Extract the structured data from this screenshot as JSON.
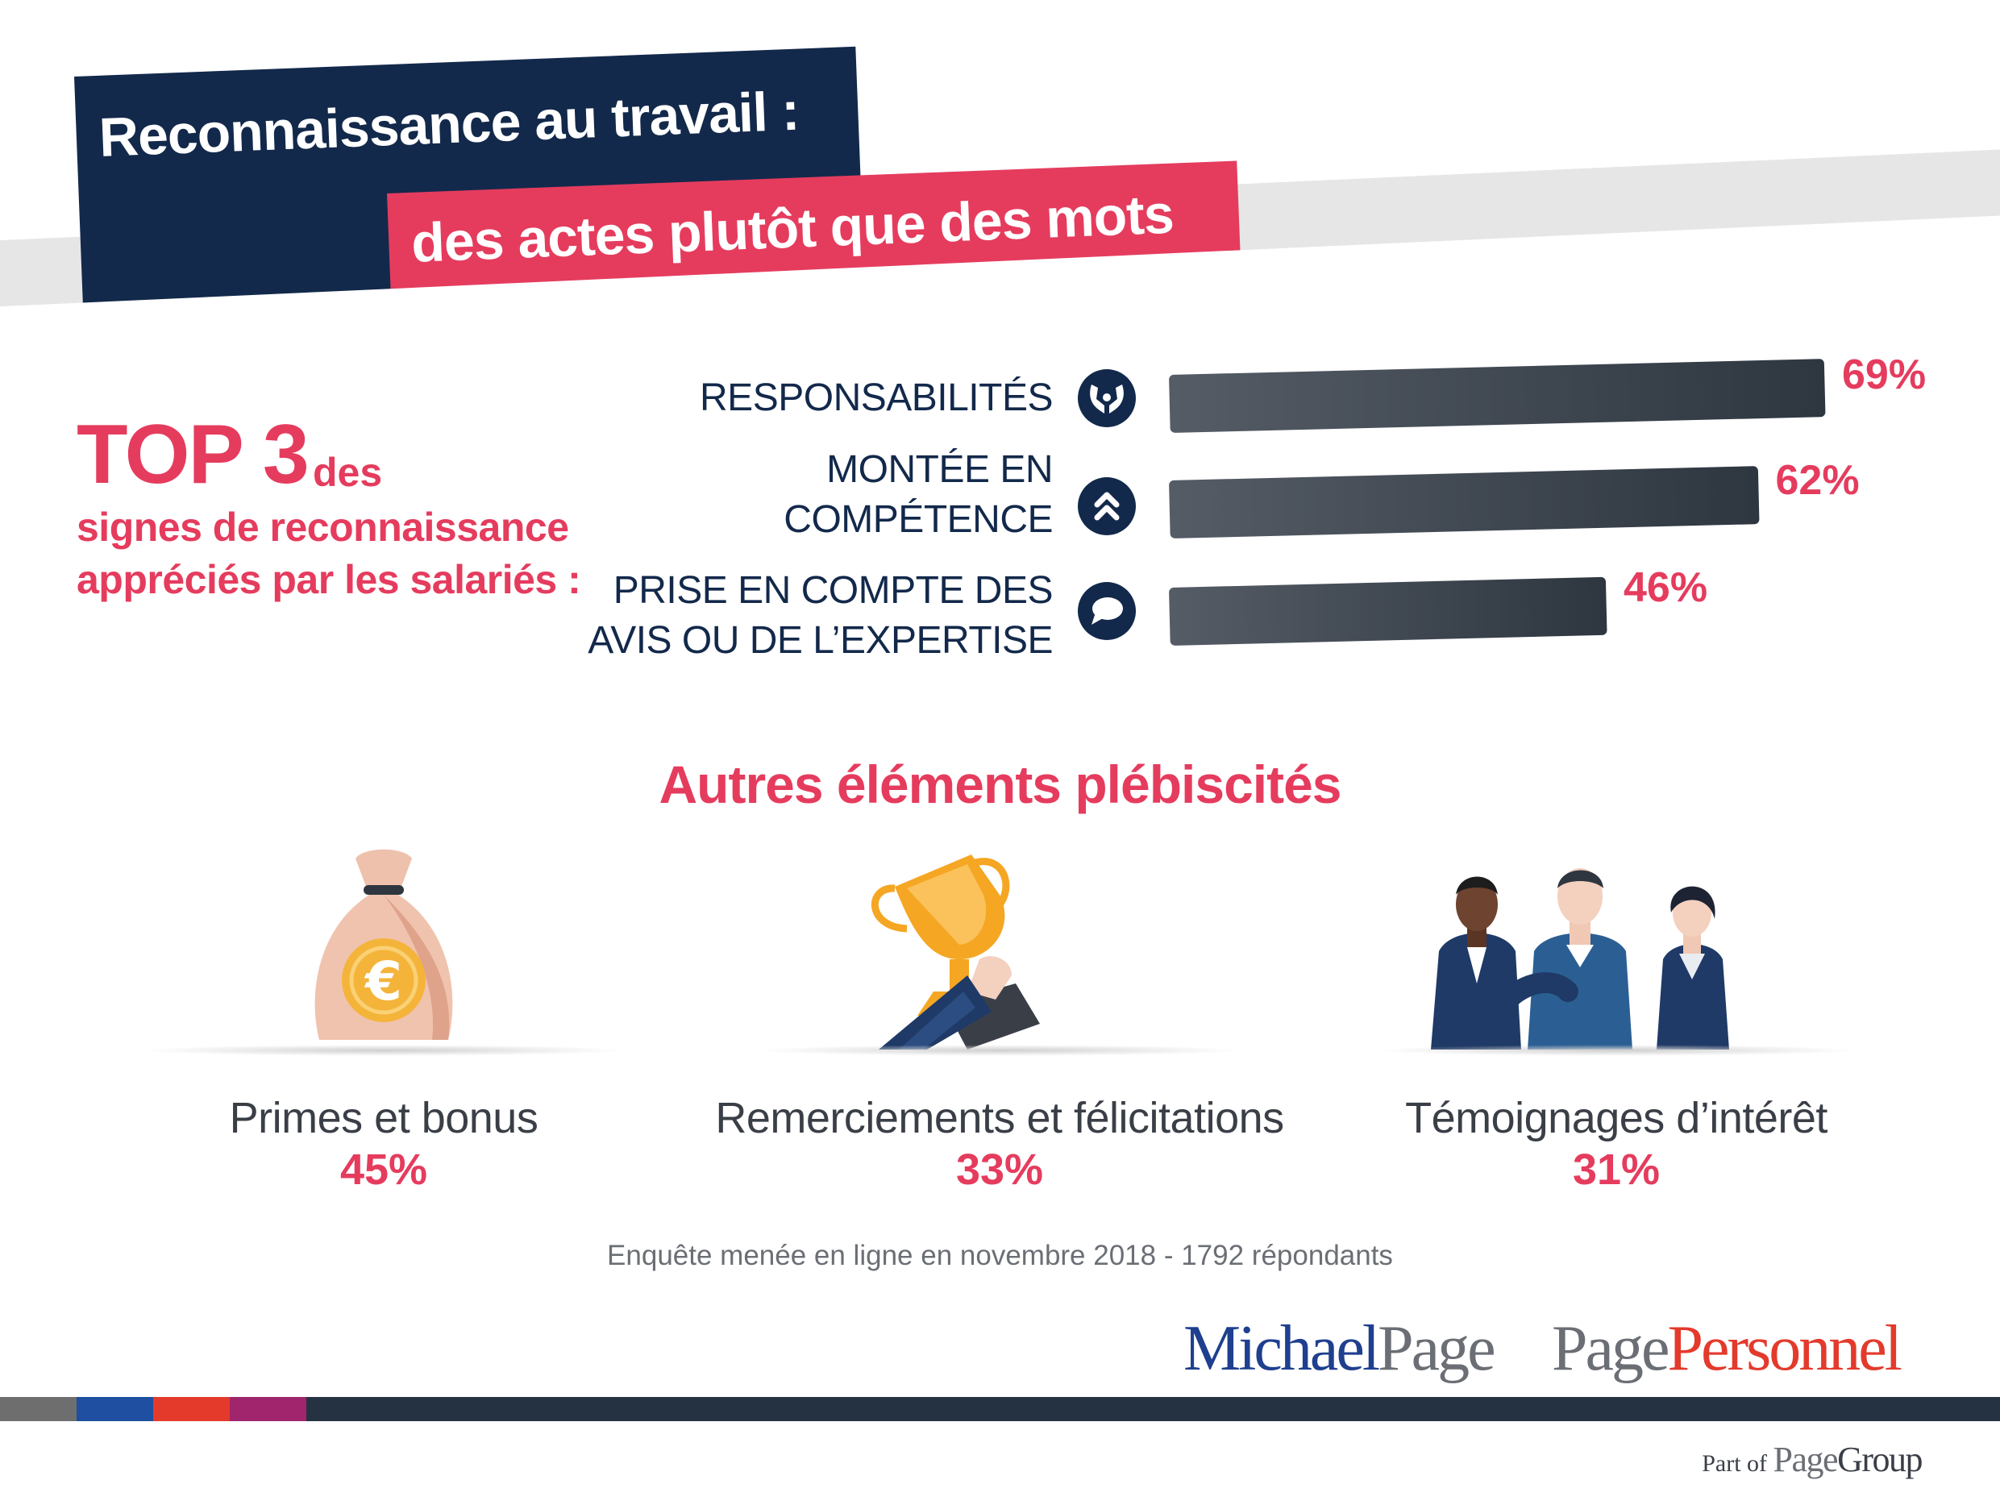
{
  "header": {
    "title_line1": "Reconnaissance au travail :",
    "title_line2": "des actes plutôt que des mots"
  },
  "top3": {
    "big": "TOP 3",
    "small": "des",
    "line2": "signes de reconnaissance",
    "line3": "appréciés par les salariés :"
  },
  "chart_data": {
    "type": "bar",
    "orientation": "horizontal",
    "categories": [
      {
        "line1": "RESPONSABILITÉS",
        "line2": ""
      },
      {
        "line1": "MONTÉE EN",
        "line2": "COMPÉTENCE"
      },
      {
        "line1": "PRISE EN COMPTE DES",
        "line2": "AVIS OU DE L’EXPERTISE"
      }
    ],
    "values": [
      69,
      62,
      46
    ],
    "value_labels": [
      "69%",
      "62%",
      "46%"
    ],
    "icons": [
      "hands-icon",
      "chevrons-up-icon",
      "speech-bubble-icon"
    ],
    "xlim": [
      0,
      69
    ],
    "grid": false,
    "bar_color": "#3a424c",
    "value_color": "#e53c5e"
  },
  "others": {
    "title": "Autres éléments plébiscités",
    "items": [
      {
        "label": "Primes et bonus",
        "value": "45%",
        "icon": "money-bag-euro-icon"
      },
      {
        "label": "Remerciements et félicitations",
        "value": "33%",
        "icon": "trophy-hand-icon"
      },
      {
        "label": "Témoignages d’intérêt",
        "value": "31%",
        "icon": "team-people-icon"
      }
    ]
  },
  "footer": {
    "survey": "Enquête menée en ligne en novembre 2018 - 1792 répondants",
    "logo_mp_a": "Michael",
    "logo_mp_b": "Page",
    "logo_pp_a": "Page",
    "logo_pp_b": "Personnel",
    "partof_a": "Part of",
    "partof_b": "Page",
    "partof_c": "Group"
  },
  "colors": {
    "navy": "#13294b",
    "accent": "#e53c5e",
    "stripe": [
      "#6e6e6e",
      "#1e4fa0",
      "#e33a2c",
      "#a0256d",
      "#253242"
    ]
  }
}
